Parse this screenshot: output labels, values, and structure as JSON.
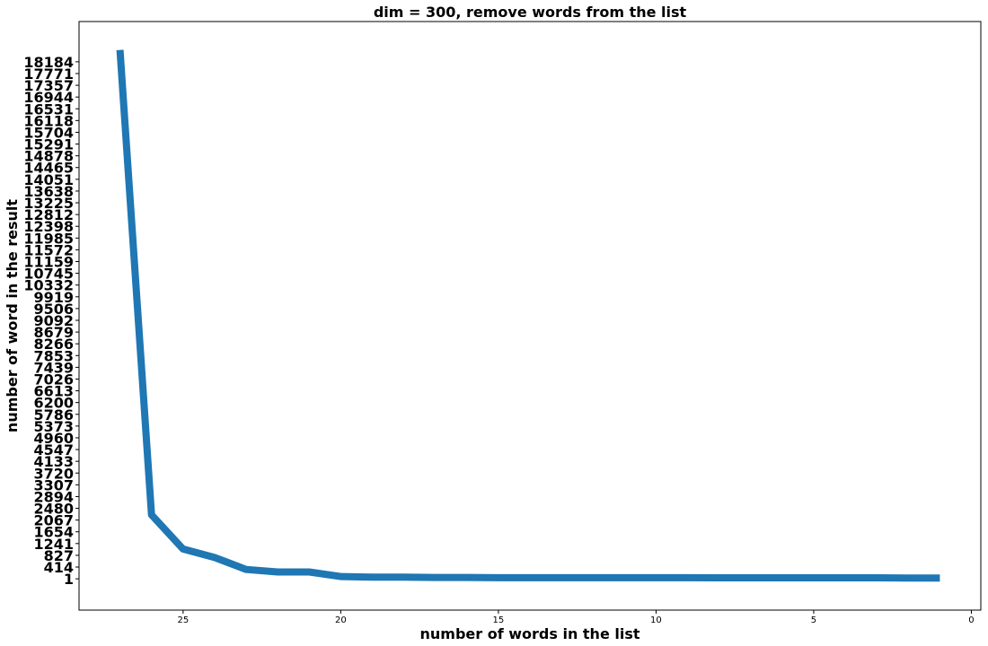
{
  "chart_data": {
    "type": "line",
    "title": "dim = 300, remove words from the list",
    "xlabel": "number of words in the list",
    "ylabel": "number of word in the result",
    "x_inverted": true,
    "xlim": [
      28.3,
      -0.3
    ],
    "ylim": [
      -1100,
      19600
    ],
    "grid": false,
    "legend": "none",
    "xticks": [
      25,
      20,
      15,
      10,
      5,
      0
    ],
    "yticks": [
      1,
      414,
      827,
      1241,
      1654,
      2067,
      2480,
      2894,
      3307,
      3720,
      4133,
      4547,
      4960,
      5373,
      5786,
      6200,
      6613,
      7026,
      7439,
      7853,
      8266,
      8679,
      9092,
      9506,
      9919,
      10332,
      10745,
      11159,
      11572,
      11985,
      12398,
      12812,
      13225,
      13638,
      14051,
      14465,
      14878,
      15291,
      15704,
      16118,
      16531,
      16944,
      17357,
      17771,
      18184
    ],
    "series": [
      {
        "color": "#1f77b4",
        "x": [
          27,
          26,
          25,
          24,
          23,
          22,
          21,
          20,
          19,
          18,
          17,
          16,
          15,
          14,
          13,
          12,
          11,
          10,
          9,
          8,
          7,
          6,
          5,
          4,
          3,
          2,
          1
        ],
        "y": [
          18600,
          2250,
          1050,
          750,
          330,
          240,
          240,
          80,
          60,
          60,
          50,
          50,
          40,
          40,
          40,
          40,
          40,
          40,
          40,
          35,
          35,
          35,
          35,
          35,
          35,
          30,
          30
        ]
      }
    ]
  }
}
